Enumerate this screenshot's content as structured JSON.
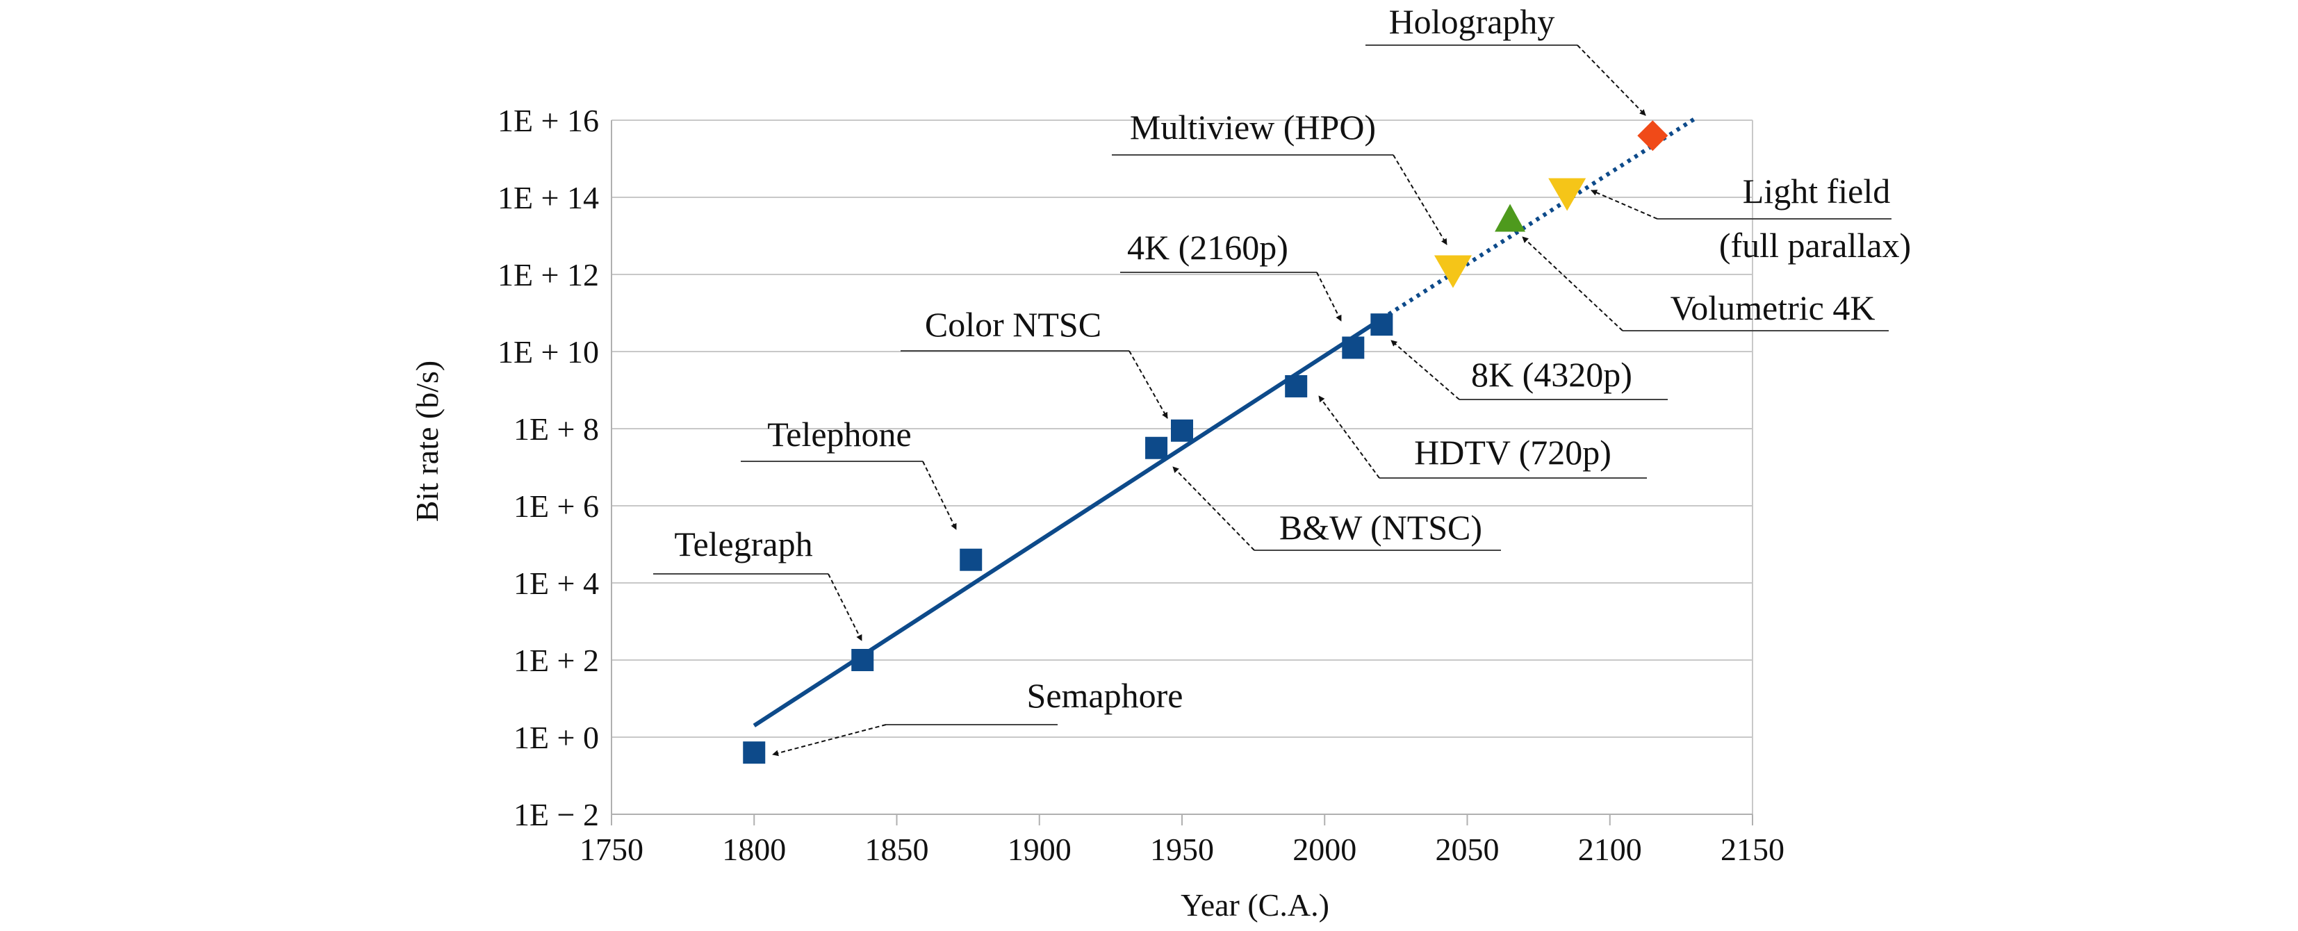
{
  "chart_data": {
    "type": "scatter",
    "xlabel": "Year (C.A.)",
    "ylabel": "Bit rate (b/s)",
    "xlim": [
      1750,
      2150
    ],
    "ylim": [
      -2,
      16
    ],
    "x_ticks": [
      1750,
      1800,
      1850,
      1900,
      1950,
      2000,
      2050,
      2100,
      2150
    ],
    "y_ticks": [
      -2,
      0,
      2,
      4,
      6,
      8,
      10,
      12,
      14,
      16
    ],
    "y_tick_labels": [
      "1E − 2",
      "1E + 0",
      "1E + 2",
      "1E + 4",
      "1E + 6",
      "1E + 8",
      "1E + 10",
      "1E + 12",
      "1E + 14",
      "1E + 16"
    ],
    "y_scale": "log10",
    "grid": "horizontal",
    "points": [
      {
        "label": "Semaphore",
        "x": 1800,
        "y": -0.4,
        "marker": "square",
        "color": "#0d4a8a"
      },
      {
        "label": "Telegraph",
        "x": 1838,
        "y": 2.0,
        "marker": "square",
        "color": "#0d4a8a"
      },
      {
        "label": "Telephone",
        "x": 1876,
        "y": 4.6,
        "marker": "square",
        "color": "#0d4a8a"
      },
      {
        "label": "B&W (NTSC)",
        "x": 1941,
        "y": 7.5,
        "marker": "square",
        "color": "#0d4a8a"
      },
      {
        "label": "Color NTSC",
        "x": 1950,
        "y": 7.95,
        "marker": "square",
        "color": "#0d4a8a"
      },
      {
        "label": "HDTV (720p)",
        "x": 1990,
        "y": 9.1,
        "marker": "square",
        "color": "#0d4a8a"
      },
      {
        "label": "4K (2160p)",
        "x": 2010,
        "y": 10.1,
        "marker": "square",
        "color": "#0d4a8a"
      },
      {
        "label": "8K (4320p)",
        "x": 2020,
        "y": 10.7,
        "marker": "square",
        "color": "#0d4a8a"
      },
      {
        "label": "Multiview (HPO)",
        "x": 2045,
        "y": 12.1,
        "marker": "triangle-down",
        "color": "#f5c518"
      },
      {
        "label": "Volumetric 4K",
        "x": 2065,
        "y": 13.45,
        "marker": "triangle-up",
        "color": "#4e9a1d"
      },
      {
        "label": "Light field (full parallax)",
        "x": 2085,
        "y": 14.1,
        "marker": "triangle-down",
        "color": "#f5c518"
      },
      {
        "label": "Holography",
        "x": 2115,
        "y": 15.6,
        "marker": "diamond",
        "color": "#f04a18"
      }
    ],
    "trend": {
      "solid": {
        "x": [
          1800,
          2020
        ],
        "y": [
          0.3,
          10.85
        ]
      },
      "dotted": {
        "x": [
          2020,
          2130
        ],
        "y": [
          10.85,
          16.05
        ]
      },
      "color": "#0d4a8a"
    }
  }
}
